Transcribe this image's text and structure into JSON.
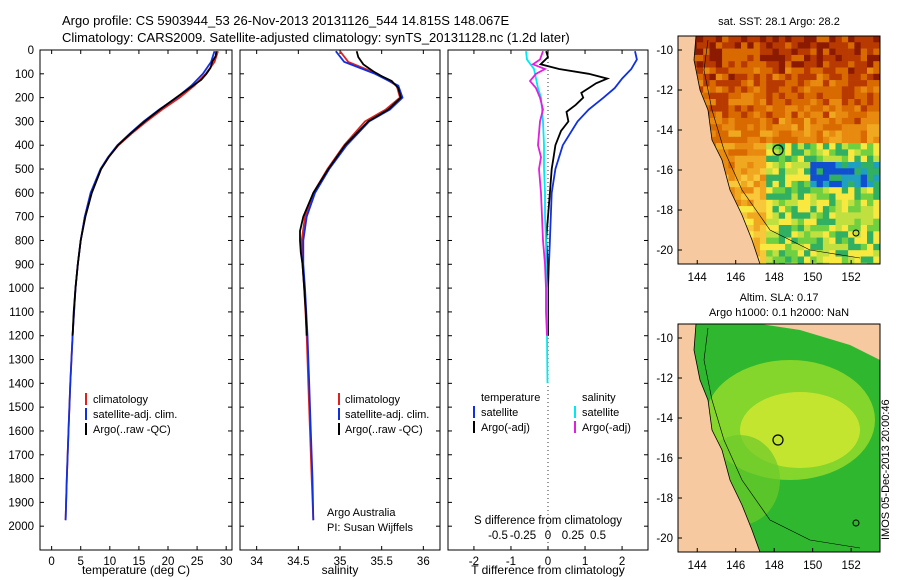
{
  "header": {
    "line1": "Argo profile: CS 5903944_53 26-Nov-2013 20131126_544 14.815S 148.067E",
    "line2": "Climatology: CARS2009. Satellite-adjusted climatology: synTS_20131128.nc (1.2d later)"
  },
  "colors": {
    "climatology": "#e02020",
    "satellite": "#1030e0",
    "argo": "#000000",
    "sal_satellite": "#00e8f0",
    "sal_argo": "#e020e0"
  },
  "chart_data": [
    {
      "type": "line",
      "name": "temperature-profile",
      "xlabel": "temperature (deg C)",
      "ylabel": "",
      "xlim": [
        -2,
        31
      ],
      "ylim": [
        2100,
        0
      ],
      "xticks": [
        "0",
        "5",
        "10",
        "15",
        "20",
        "25",
        "30"
      ],
      "yticks": [
        "0",
        "100",
        "200",
        "300",
        "400",
        "500",
        "600",
        "700",
        "800",
        "900",
        "1000",
        "1100",
        "1200",
        "1300",
        "1400",
        "1500",
        "1600",
        "1700",
        "1800",
        "1900",
        "2000"
      ],
      "legend": [
        "climatology",
        "satellite-adj. clim.",
        "Argo(..raw -QC)"
      ],
      "series": [
        {
          "name": "climatology",
          "depth": [
            5,
            50,
            100,
            150,
            200,
            250,
            300,
            350,
            400,
            450,
            500,
            600,
            700,
            800,
            900,
            1000,
            1200,
            1400,
            1600,
            1800,
            1975
          ],
          "values": [
            28.6,
            28.0,
            26.5,
            24.5,
            22.0,
            19.0,
            16.3,
            13.8,
            11.5,
            9.8,
            8.5,
            6.8,
            5.7,
            5.0,
            4.5,
            4.1,
            3.6,
            3.2,
            2.9,
            2.6,
            2.4
          ]
        },
        {
          "name": "satellite-adj. clim.",
          "depth": [
            5,
            50,
            100,
            150,
            200,
            250,
            300,
            350,
            400,
            450,
            500,
            600,
            700,
            800,
            900,
            1000,
            1200,
            1400,
            1600,
            1800,
            1975
          ],
          "values": [
            28.0,
            27.4,
            26.0,
            24.0,
            21.5,
            18.5,
            15.8,
            13.5,
            11.3,
            9.7,
            8.4,
            6.7,
            5.7,
            5.0,
            4.5,
            4.1,
            3.6,
            3.2,
            2.9,
            2.6,
            2.4
          ]
        },
        {
          "name": "Argo",
          "depth": [
            5,
            25,
            50,
            75,
            100,
            125,
            150,
            200,
            250,
            300,
            350,
            400,
            450,
            500,
            600,
            700,
            800,
            900,
            1000,
            1100,
            1200
          ],
          "values": [
            28.3,
            28.2,
            27.6,
            27.3,
            26.6,
            25.7,
            24.3,
            21.4,
            18.6,
            16.0,
            13.6,
            11.4,
            9.8,
            8.5,
            6.9,
            5.8,
            5.0,
            4.5,
            4.1,
            3.8,
            3.6
          ]
        }
      ]
    },
    {
      "type": "line",
      "name": "salinity-profile",
      "xlabel": "salinity",
      "xlim": [
        33.8,
        36.2
      ],
      "ylim": [
        2100,
        0
      ],
      "xticks": [
        "34",
        "34.5",
        "35",
        "35.5",
        "36"
      ],
      "legend": [
        "climatology",
        "satellite-adj. clim.",
        "Argo(..raw -QC)"
      ],
      "annotation": [
        "Argo Australia",
        "PI: Susan Wijffels"
      ],
      "series": [
        {
          "name": "climatology",
          "depth": [
            5,
            50,
            100,
            150,
            200,
            250,
            300,
            400,
            500,
            600,
            700,
            800,
            900,
            1000,
            1200,
            1400,
            1600,
            1800,
            1975
          ],
          "values": [
            35.0,
            35.1,
            35.45,
            35.68,
            35.72,
            35.55,
            35.3,
            35.05,
            34.85,
            34.68,
            34.58,
            34.54,
            34.55,
            34.57,
            34.6,
            34.62,
            34.64,
            34.66,
            34.68
          ]
        },
        {
          "name": "satellite-adj. clim.",
          "depth": [
            5,
            50,
            100,
            150,
            200,
            250,
            300,
            400,
            500,
            600,
            700,
            800,
            900,
            1000,
            1200,
            1400,
            1600,
            1800,
            1975
          ],
          "values": [
            34.95,
            35.05,
            35.42,
            35.7,
            35.75,
            35.6,
            35.35,
            35.08,
            34.87,
            34.7,
            34.6,
            34.56,
            34.56,
            34.58,
            34.61,
            34.63,
            34.65,
            34.67,
            34.68
          ]
        },
        {
          "name": "Argo",
          "depth": [
            5,
            30,
            60,
            90,
            110,
            130,
            160,
            200,
            250,
            300,
            400,
            500,
            600,
            700,
            760,
            800,
            850,
            900,
            1000,
            1100,
            1200
          ],
          "values": [
            35.2,
            35.22,
            35.28,
            35.4,
            35.5,
            35.62,
            35.7,
            35.73,
            35.58,
            35.34,
            35.06,
            34.86,
            34.68,
            34.56,
            34.52,
            34.52,
            34.53,
            34.55,
            34.57,
            34.59,
            34.6
          ]
        }
      ]
    },
    {
      "type": "line",
      "name": "difference-profile",
      "xlabel": "T difference from climatology",
      "xlabel_top": "S difference from climatology",
      "xlim": [
        -2.7,
        2.7
      ],
      "ylim": [
        2100,
        0
      ],
      "xticks": [
        "-2",
        "-1",
        "0",
        "1",
        "2"
      ],
      "xticks_top": [
        "-0.5",
        "-0.25",
        "0",
        "0.25",
        "0.5"
      ],
      "legend": {
        "temperature": [
          "satellite",
          "Argo(-adj)"
        ],
        "salinity": [
          "satellite",
          "Argo(-adj)"
        ]
      },
      "series": [
        {
          "name": "temperature satellite",
          "depth": [
            5,
            40,
            80,
            120,
            160,
            200,
            250,
            300,
            400,
            500,
            600,
            800,
            1000,
            1200
          ],
          "values": [
            2.35,
            2.4,
            2.25,
            2.0,
            1.8,
            1.5,
            1.1,
            0.8,
            0.4,
            0.2,
            0.1,
            0.05,
            0.0,
            0.0
          ]
        },
        {
          "name": "temperature Argo(-adj)",
          "depth": [
            5,
            30,
            60,
            80,
            100,
            120,
            140,
            160,
            180,
            200,
            230,
            260,
            300,
            340,
            400,
            450,
            500,
            600,
            700,
            800,
            900,
            1000,
            1200
          ],
          "values": [
            -0.05,
            0.0,
            -0.2,
            0.3,
            1.1,
            1.6,
            1.3,
            1.1,
            0.9,
            0.95,
            0.75,
            0.5,
            0.55,
            0.35,
            0.2,
            0.15,
            0.1,
            0.05,
            0.0,
            -0.05,
            0.0,
            0.0,
            0.0
          ]
        },
        {
          "name": "salinity satellite",
          "depth": [
            5,
            40,
            80,
            120,
            160,
            200,
            250,
            300,
            400,
            500,
            600,
            700,
            800,
            900,
            1000,
            1200,
            1400
          ],
          "values": [
            -0.22,
            -0.21,
            -0.14,
            -0.12,
            -0.1,
            -0.07,
            -0.06,
            -0.05,
            -0.04,
            -0.04,
            -0.03,
            -0.03,
            -0.02,
            -0.02,
            -0.01,
            -0.01,
            -0.005
          ]
        },
        {
          "name": "salinity Argo(-adj)",
          "depth": [
            5,
            40,
            60,
            80,
            100,
            130,
            160,
            200,
            250,
            300,
            400,
            450,
            500,
            600,
            700,
            800,
            900,
            1000,
            1100,
            1200
          ],
          "values": [
            -0.05,
            -0.08,
            -0.15,
            -0.03,
            -0.12,
            -0.18,
            -0.12,
            -0.08,
            -0.05,
            -0.08,
            -0.1,
            -0.07,
            -0.09,
            -0.07,
            -0.06,
            -0.05,
            -0.03,
            -0.02,
            -0.02,
            -0.01
          ]
        }
      ]
    },
    {
      "type": "heatmap",
      "name": "sst-map",
      "title": "sat. SST: 28.1  Argo: 28.2",
      "xlim": [
        143,
        153.5
      ],
      "ylim": [
        -20.7,
        -9.3
      ],
      "xticks": [
        "144",
        "146",
        "148",
        "150",
        "152"
      ],
      "yticks": [
        "-10",
        "-12",
        "-14",
        "-16",
        "-18",
        "-20"
      ],
      "argo_position": {
        "lon": 148.067,
        "lat": -14.815
      }
    },
    {
      "type": "heatmap",
      "name": "sla-map",
      "title": [
        "Altim. SLA: 0.17",
        "Argo h1000: 0.1  h2000: NaN"
      ],
      "xlim": [
        143,
        153.5
      ],
      "ylim": [
        -20.7,
        -9.3
      ],
      "xticks": [
        "144",
        "146",
        "148",
        "150",
        "152"
      ],
      "yticks": [
        "-10",
        "-12",
        "-14",
        "-16",
        "-18",
        "-20"
      ],
      "argo_position": {
        "lon": 148.067,
        "lat": -14.815
      }
    }
  ],
  "footer": {
    "credit": "IMOS 05-Dec-2013 20:00:46"
  }
}
